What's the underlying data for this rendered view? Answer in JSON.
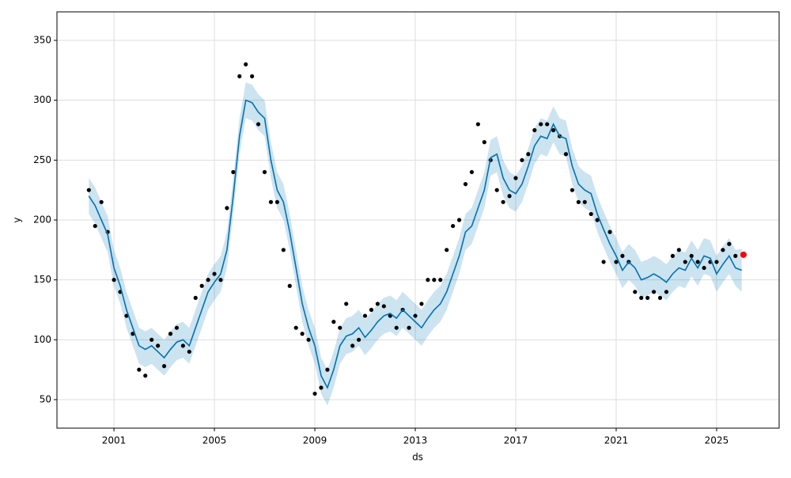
{
  "chart_data": {
    "type": "line",
    "xlabel": "ds",
    "ylabel": "y",
    "grid": true,
    "xlim": [
      1998.73,
      2027.49
    ],
    "xticks": [
      2001,
      2005,
      2009,
      2013,
      2017,
      2021,
      2025
    ],
    "ylim": [
      26.2,
      373.8
    ],
    "yticks": [
      50,
      100,
      150,
      200,
      250,
      300,
      350
    ],
    "x": [
      2000,
      2000.25,
      2000.5,
      2000.75,
      2001,
      2001.25,
      2001.5,
      2001.75,
      2002,
      2002.25,
      2002.5,
      2002.75,
      2003,
      2003.25,
      2003.5,
      2003.75,
      2004,
      2004.25,
      2004.5,
      2004.75,
      2005,
      2005.25,
      2005.5,
      2005.75,
      2006,
      2006.25,
      2006.5,
      2006.75,
      2007,
      2007.25,
      2007.5,
      2007.75,
      2008,
      2008.25,
      2008.5,
      2008.75,
      2009,
      2009.25,
      2009.5,
      2009.75,
      2010,
      2010.25,
      2010.5,
      2010.75,
      2011,
      2011.25,
      2011.5,
      2011.75,
      2012,
      2012.25,
      2012.5,
      2012.75,
      2013,
      2013.25,
      2013.5,
      2013.75,
      2014,
      2014.25,
      2014.5,
      2014.75,
      2015,
      2015.25,
      2015.5,
      2015.75,
      2016,
      2016.25,
      2016.5,
      2016.75,
      2017,
      2017.25,
      2017.5,
      2017.75,
      2018,
      2018.25,
      2018.5,
      2018.75,
      2019,
      2019.25,
      2019.5,
      2019.75,
      2020,
      2020.25,
      2020.5,
      2020.75,
      2021,
      2021.25,
      2021.5,
      2021.75,
      2022,
      2022.25,
      2022.5,
      2022.75,
      2023,
      2023.25,
      2023.5,
      2023.75,
      2024,
      2024.25,
      2024.5,
      2024.75,
      2025,
      2025.25,
      2025.5,
      2025.75,
      2026
    ],
    "series": [
      {
        "color": "#000000",
        "marker": "dot",
        "values": [
          225,
          195,
          215,
          190,
          150,
          140,
          120,
          105,
          75,
          70,
          100,
          95,
          78,
          105,
          110,
          95,
          90,
          135,
          145,
          150,
          155,
          150,
          210,
          240,
          320,
          330,
          320,
          280,
          240,
          215,
          215,
          175,
          145,
          110,
          105,
          100,
          55,
          60,
          75,
          115,
          110,
          130,
          95,
          100,
          120,
          125,
          130,
          128,
          120,
          110,
          125,
          110,
          120,
          130,
          150,
          150,
          150,
          175,
          195,
          200,
          230,
          240,
          280,
          265,
          250,
          225,
          215,
          220,
          235,
          250,
          255,
          275,
          280,
          280,
          275,
          270,
          255,
          225,
          215,
          215,
          205,
          200,
          165,
          190,
          165,
          170,
          165,
          140,
          135,
          135,
          140,
          135,
          140,
          170,
          175,
          165,
          170,
          165,
          160,
          165,
          165,
          175,
          180,
          170,
          null
        ]
      },
      {
        "color": "#0072B2",
        "band_color": "#0072B2",
        "values": [
          220,
          212,
          200,
          188,
          160,
          145,
          125,
          110,
          95,
          92,
          95,
          90,
          85,
          92,
          98,
          100,
          95,
          110,
          125,
          140,
          148,
          155,
          175,
          220,
          270,
          300,
          298,
          290,
          285,
          250,
          225,
          215,
          190,
          160,
          130,
          110,
          95,
          70,
          60,
          75,
          95,
          103,
          105,
          110,
          102,
          108,
          115,
          120,
          122,
          118,
          125,
          120,
          115,
          110,
          118,
          125,
          130,
          140,
          155,
          170,
          190,
          195,
          210,
          225,
          252,
          255,
          235,
          225,
          222,
          230,
          245,
          262,
          270,
          268,
          280,
          270,
          268,
          245,
          230,
          225,
          222,
          205,
          192,
          180,
          170,
          158,
          165,
          160,
          150,
          152,
          155,
          152,
          148,
          155,
          160,
          158,
          168,
          160,
          170,
          168,
          155,
          163,
          170,
          160,
          158
        ],
        "lower": [
          205,
          197,
          185,
          173,
          145,
          130,
          110,
          95,
          80,
          77,
          80,
          75,
          70,
          77,
          83,
          85,
          80,
          95,
          110,
          125,
          133,
          140,
          160,
          205,
          255,
          285,
          283,
          275,
          270,
          235,
          210,
          200,
          175,
          145,
          115,
          95,
          80,
          55,
          45,
          60,
          80,
          88,
          90,
          95,
          87,
          93,
          100,
          105,
          107,
          103,
          110,
          105,
          100,
          95,
          103,
          110,
          115,
          125,
          140,
          155,
          175,
          180,
          195,
          210,
          237,
          240,
          220,
          210,
          207,
          215,
          230,
          247,
          255,
          253,
          265,
          255,
          253,
          230,
          215,
          210,
          207,
          190,
          177,
          165,
          155,
          143,
          150,
          145,
          135,
          137,
          140,
          137,
          133,
          140,
          145,
          143,
          153,
          145,
          155,
          153,
          140,
          148,
          155,
          145,
          140
        ],
        "upper": [
          235,
          227,
          215,
          203,
          175,
          160,
          140,
          125,
          110,
          107,
          110,
          105,
          100,
          107,
          113,
          115,
          110,
          125,
          140,
          155,
          163,
          170,
          190,
          235,
          285,
          315,
          313,
          305,
          300,
          265,
          240,
          230,
          205,
          175,
          145,
          125,
          110,
          85,
          75,
          90,
          110,
          118,
          120,
          125,
          117,
          123,
          130,
          135,
          137,
          133,
          140,
          135,
          130,
          125,
          133,
          140,
          145,
          155,
          170,
          185,
          205,
          210,
          225,
          240,
          267,
          270,
          250,
          240,
          237,
          245,
          260,
          277,
          285,
          283,
          295,
          285,
          283,
          260,
          245,
          240,
          237,
          220,
          207,
          195,
          185,
          173,
          180,
          175,
          165,
          167,
          170,
          167,
          163,
          170,
          175,
          173,
          183,
          175,
          185,
          183,
          170,
          178,
          185,
          175,
          176
        ]
      }
    ],
    "last_point": {
      "x": 2026.07,
      "y": 171,
      "color": "#ff0000"
    }
  }
}
